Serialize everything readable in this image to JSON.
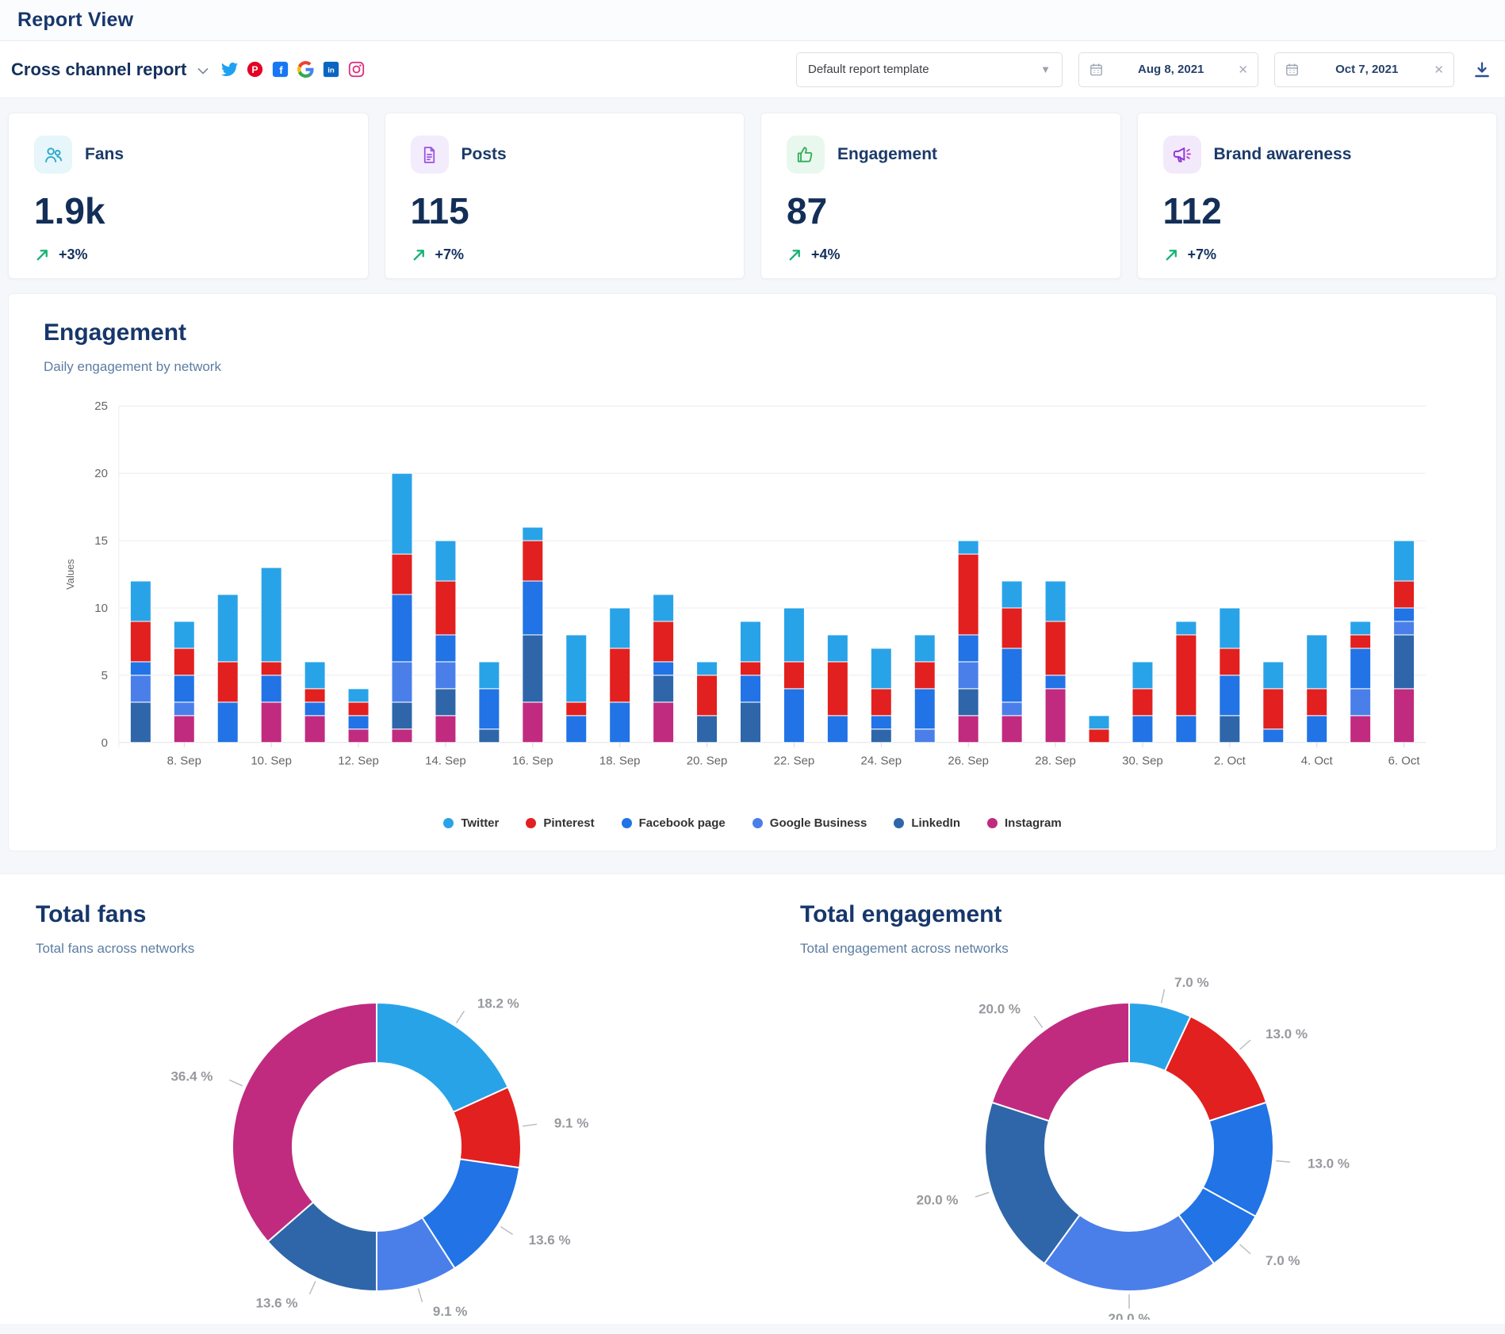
{
  "header": {
    "title": "Report View"
  },
  "toolbar": {
    "report_name": "Cross channel report",
    "networks": [
      "twitter-icon",
      "pinterest-icon",
      "facebook-icon",
      "google-icon",
      "linkedin-icon",
      "instagram-icon"
    ],
    "template_select": {
      "value": "Default report template"
    },
    "date_from": "Aug 8, 2021",
    "date_to": "Oct 7, 2021"
  },
  "kpis": [
    {
      "label": "Fans",
      "value": "1.9k",
      "trend": "+3%",
      "icon": "users-icon",
      "accent": "#2ba8c9",
      "accent_bg": "#e6f6fa"
    },
    {
      "label": "Posts",
      "value": "115",
      "trend": "+7%",
      "icon": "document-icon",
      "accent": "#9b51e0",
      "accent_bg": "#f3ecfc"
    },
    {
      "label": "Engagement",
      "value": "87",
      "trend": "+4%",
      "icon": "thumbs-up-icon",
      "accent": "#2fae55",
      "accent_bg": "#e9f8ee"
    },
    {
      "label": "Brand awareness",
      "value": "112",
      "trend": "+7%",
      "icon": "megaphone-icon",
      "accent": "#8f35d4",
      "accent_bg": "#f2eafb"
    }
  ],
  "trend_color": "#16b276",
  "network_legend": [
    {
      "name": "Twitter",
      "color": "#29a3e8"
    },
    {
      "name": "Pinterest",
      "color": "#e2201f"
    },
    {
      "name": "Facebook page",
      "color": "#2173e6"
    },
    {
      "name": "Google Business",
      "color": "#4a7fea"
    },
    {
      "name": "LinkedIn",
      "color": "#2e66a9"
    },
    {
      "name": "Instagram",
      "color": "#c02b80"
    }
  ],
  "chart_data": [
    {
      "id": "daily_engagement",
      "type": "bar",
      "stacked": true,
      "title": "Engagement",
      "subtitle": "Daily engagement by network",
      "ylabel": "Values",
      "ylim": [
        0,
        25
      ],
      "yticks": [
        0,
        5,
        10,
        15,
        20,
        25
      ],
      "grid": true,
      "legend_position": "bottom",
      "categories": [
        "7. Sep",
        "8. Sep",
        "9. Sep",
        "10. Sep",
        "11. Sep",
        "12. Sep",
        "13. Sep",
        "14. Sep",
        "15. Sep",
        "16. Sep",
        "17. Sep",
        "18. Sep",
        "19. Sep",
        "20. Sep",
        "21. Sep",
        "22. Sep",
        "23. Sep",
        "24. Sep",
        "25. Sep",
        "26. Sep",
        "27. Sep",
        "28. Sep",
        "29. Sep",
        "30. Sep",
        "1. Oct",
        "2. Oct",
        "3. Oct",
        "4. Oct",
        "5. Oct",
        "6. Oct"
      ],
      "x_tick_labels": [
        "8. Sep",
        "10. Sep",
        "12. Sep",
        "14. Sep",
        "16. Sep",
        "18. Sep",
        "20. Sep",
        "22. Sep",
        "24. Sep",
        "26. Sep",
        "28. Sep",
        "30. Sep",
        "2. Oct",
        "4. Oct",
        "6. Oct"
      ],
      "stack_order_bottom_to_top": [
        "Instagram",
        "LinkedIn",
        "Google Business",
        "Facebook page",
        "Pinterest",
        "Twitter"
      ],
      "series": [
        {
          "name": "Twitter",
          "color": "#29a3e8",
          "values": [
            3,
            2,
            5,
            7,
            2,
            1,
            6,
            3,
            2,
            1,
            5,
            3,
            2,
            1,
            3,
            4,
            2,
            3,
            2,
            1,
            2,
            3,
            1,
            2,
            1,
            3,
            2,
            4,
            1,
            3
          ]
        },
        {
          "name": "Pinterest",
          "color": "#e2201f",
          "values": [
            3,
            2,
            3,
            1,
            1,
            1,
            3,
            4,
            0,
            3,
            1,
            4,
            3,
            3,
            1,
            2,
            4,
            2,
            2,
            6,
            3,
            4,
            1,
            2,
            6,
            2,
            3,
            2,
            1,
            2
          ]
        },
        {
          "name": "Facebook page",
          "color": "#2173e6",
          "values": [
            1,
            2,
            3,
            2,
            1,
            1,
            5,
            2,
            3,
            4,
            2,
            3,
            1,
            0,
            2,
            4,
            2,
            1,
            3,
            2,
            4,
            1,
            0,
            2,
            2,
            3,
            1,
            2,
            3,
            1
          ]
        },
        {
          "name": "Google Business",
          "color": "#4a7fea",
          "values": [
            2,
            1,
            0,
            0,
            0,
            0,
            3,
            2,
            0,
            0,
            0,
            0,
            0,
            0,
            0,
            0,
            0,
            0,
            1,
            2,
            1,
            0,
            0,
            0,
            0,
            0,
            0,
            0,
            2,
            1
          ]
        },
        {
          "name": "LinkedIn",
          "color": "#2e66a9",
          "values": [
            3,
            0,
            0,
            0,
            0,
            0,
            2,
            2,
            1,
            5,
            0,
            0,
            2,
            2,
            3,
            0,
            0,
            1,
            0,
            2,
            0,
            0,
            0,
            0,
            0,
            2,
            0,
            0,
            0,
            4
          ]
        },
        {
          "name": "Instagram",
          "color": "#c02b80",
          "values": [
            0,
            2,
            0,
            3,
            2,
            1,
            1,
            2,
            0,
            3,
            0,
            0,
            3,
            0,
            0,
            0,
            0,
            0,
            0,
            2,
            2,
            4,
            0,
            0,
            0,
            0,
            0,
            0,
            2,
            4
          ]
        }
      ]
    },
    {
      "id": "total_fans",
      "type": "pie",
      "title": "Total fans",
      "subtitle": "Total fans across networks",
      "donut": true,
      "segments": [
        {
          "label": "18.2 %",
          "value": 18.2,
          "color": "#29a3e8"
        },
        {
          "label": "9.1 %",
          "value": 9.1,
          "color": "#e2201f"
        },
        {
          "label": "13.6 %",
          "value": 13.6,
          "color": "#2173e6"
        },
        {
          "label": "9.1 %",
          "value": 9.1,
          "color": "#4a7fea"
        },
        {
          "label": "13.6 %",
          "value": 13.6,
          "color": "#2e66a9"
        },
        {
          "label": "36.4 %",
          "value": 36.4,
          "color": "#c02b80"
        }
      ]
    },
    {
      "id": "total_engagement",
      "type": "pie",
      "title": "Total engagement",
      "subtitle": "Total engagement across networks",
      "donut": true,
      "segments": [
        {
          "label": "7.0 %",
          "value": 7.0,
          "color": "#29a3e8"
        },
        {
          "label": "13.0 %",
          "value": 13.0,
          "color": "#e2201f"
        },
        {
          "label": "13.0 %",
          "value": 13.0,
          "color": "#2173e6"
        },
        {
          "label": "7.0 %",
          "value": 7.0,
          "color": "#2173e6"
        },
        {
          "label": "20.0 %",
          "value": 20.0,
          "color": "#4a7fea"
        },
        {
          "label": "20.0 %",
          "value": 20.0,
          "color": "#2e66a9"
        },
        {
          "label": "20.0 %",
          "value": 20.0,
          "color": "#c02b80"
        }
      ]
    }
  ]
}
